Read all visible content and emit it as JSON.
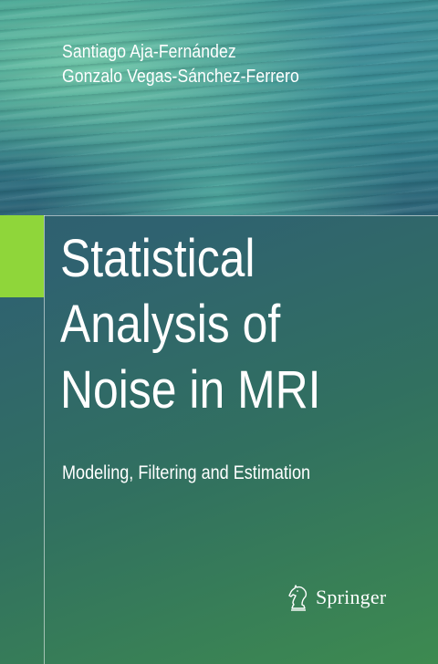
{
  "cover": {
    "authors": [
      "Santiago Aja-Fernández",
      "Gonzalo Vegas-Sánchez-Ferrero"
    ],
    "title_lines": [
      "Statistical",
      "Analysis of",
      "Noise in MRI"
    ],
    "subtitle": "Modeling, Filtering and Estimation",
    "publisher": "Springer"
  },
  "colors": {
    "accent_green": "#8fd63a",
    "text": "#ffffff",
    "background_top": "#2d5c70",
    "background_bottom": "#3d8a50"
  },
  "icons": {
    "publisher_logo": "springer-chess-knight-icon"
  }
}
